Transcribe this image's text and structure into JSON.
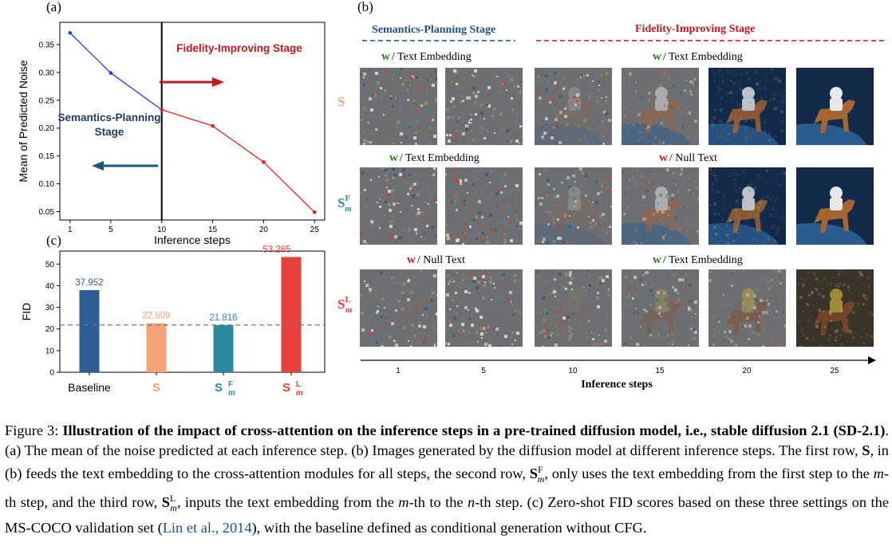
{
  "panel_labels": {
    "a": "(a)",
    "b": "(b)",
    "c": "(c)"
  },
  "panel_a": {
    "chart_data": {
      "type": "line",
      "xlabel": "Inference steps",
      "ylabel": "Mean of Predicted Noise",
      "x_ticks": [
        1,
        5,
        10,
        15,
        20,
        25
      ],
      "y_ticks": [
        0.05,
        0.1,
        0.15,
        0.2,
        0.25,
        0.3,
        0.35
      ],
      "y_tick_labels": [
        "0.05",
        "0.10",
        "0.15",
        "0.20",
        "0.25",
        "0.30",
        "0.35"
      ],
      "ylim": [
        0.035,
        0.39
      ],
      "xlim": [
        0,
        26
      ],
      "series": [
        {
          "color": "#1f3fff",
          "x": [
            1,
            5,
            10
          ],
          "y": [
            0.371,
            0.299,
            0.233
          ]
        },
        {
          "color": "#e8231c",
          "x": [
            10,
            15,
            20,
            25
          ],
          "y": [
            0.233,
            0.204,
            0.139,
            0.049
          ]
        }
      ],
      "split_at": 10,
      "annotations": {
        "fidelity": "Fidelity-Improving Stage",
        "semantics_line1": "Semantics-Planning",
        "semantics_line2": "Stage"
      },
      "colors": {
        "fidelity": "#c4161c",
        "semantics": "#1f3a5f",
        "arrow_red": "#c4161c",
        "arrow_teal": "#1d5b73"
      }
    }
  },
  "panel_c": {
    "chart_data": {
      "type": "bar",
      "ylabel": "FID",
      "categories": [
        "Baseline",
        "S",
        "S_m^F",
        "S_m^L"
      ],
      "values": [
        37.952,
        22.609,
        21.816,
        53.265
      ],
      "value_labels": [
        "37.952",
        "22.609",
        "21.816",
        "53.265"
      ],
      "colors": [
        "#2d5f96",
        "#f4a277",
        "#2a8aa0",
        "#e8403c"
      ],
      "y_ticks": [
        0,
        10,
        20,
        30,
        40,
        50
      ],
      "ylim": [
        0,
        56
      ],
      "reference_line": 21.816
    }
  },
  "panel_b": {
    "stages": {
      "semantics": "Semantics-Planning Stage",
      "fidelity": "Fidelity-Improving Stage"
    },
    "row_captions": {
      "row1_left": {
        "w": "w",
        "text": "/ Text Embedding"
      },
      "row1_right": {
        "w": "w",
        "text": "/ Text Embedding"
      },
      "row2_left": {
        "w": "w",
        "text": "/ Text Embedding"
      },
      "row2_right": {
        "w": "w",
        "text": "/ Null Text"
      },
      "row3_left": {
        "w": "w",
        "text": "/ Null Text"
      },
      "row3_right": {
        "w": "w",
        "text": "/ Text Embedding"
      }
    },
    "row_labels": [
      "S",
      "S",
      "S"
    ],
    "row_label_sup": [
      "",
      "F",
      "L"
    ],
    "row_label_sub": [
      "",
      "m",
      "m"
    ],
    "x_ticks": [
      "1",
      "5",
      "10",
      "15",
      "20",
      "25"
    ],
    "xlabel": "Inference steps",
    "colors": {
      "green_w": "#2e7d1e",
      "red_w": "#d41c1c",
      "semantics": "#1f4e8c",
      "fidelity": "#c4161c"
    }
  },
  "caption": {
    "fig": "Figure 3:",
    "bold": "Illustration of the impact of cross-attention on the inference steps in a pre-trained diffusion model, i.e., stable diffusion 2.1 (SD-2.1)",
    "p1": ". (a) The mean of the noise predicted at each inference step. (b) Images generated by the diffusion model at different inference steps. The first row, ",
    "p2": ", in (b) feeds the text embedding to the cross-attention modules for all steps, the second row, ",
    "p3": ", only uses the text embedding from the first step to the ",
    "p4": "-th step, and the third row, ",
    "p5": ", inputs the text embedding from the ",
    "p6": "-th to the ",
    "p7": "-th step. (c) Zero-shot FID scores based on these three settings on the MS-COCO validation set (",
    "cite_text": "Lin et al., ",
    "cite_year": "2014",
    "p8": "), with the baseline defined as conditional generation without CFG."
  }
}
